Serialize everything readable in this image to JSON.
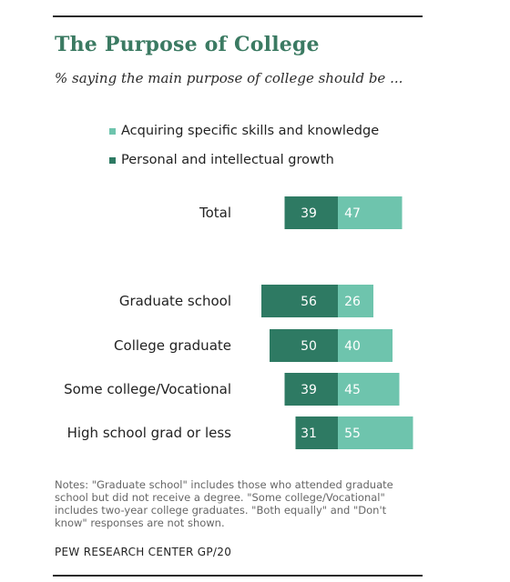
{
  "colors": {
    "personal": "#2e7a63",
    "skills": "#6ec4ad",
    "title": "#3b7a62"
  },
  "header": {
    "title": "The Purpose of College",
    "subtitle": "% saying the main purpose of college should be ..."
  },
  "legend": [
    {
      "label": "Acquiring specific skills and knowledge",
      "color": "#6ec4ad"
    },
    {
      "label": "Personal and intellectual growth",
      "color": "#2e7a63"
    }
  ],
  "chart_data": {
    "type": "bar",
    "orientation": "horizontal-diverging",
    "categories": [
      "Total",
      "Graduate school",
      "College graduate",
      "Some college/Vocational",
      "High school grad or less"
    ],
    "series": [
      {
        "name": "Personal and intellectual growth",
        "values": [
          39,
          56,
          50,
          39,
          31
        ]
      },
      {
        "name": "Acquiring specific skills and knowledge",
        "values": [
          47,
          26,
          40,
          45,
          55
        ]
      }
    ],
    "legend_placement": "top",
    "grid": false
  },
  "notes": "Notes: \"Graduate school\" includes those who attended graduate school but did not receive a degree. \"Some college/Vocational\" includes two-year college graduates. \"Both equally\" and \"Don't know\" responses are not shown.",
  "source": "PEW RESEARCH CENTER GP/20"
}
